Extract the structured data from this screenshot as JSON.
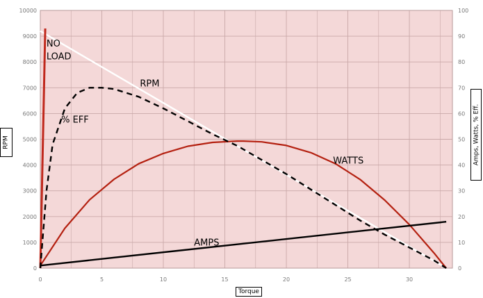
{
  "chart_data": {
    "type": "line",
    "title": "",
    "xlabel": "Torque",
    "ylabel_left": "RPM",
    "ylabel_right": "Amps, Watts, % Eff.",
    "xlim": [
      0,
      33.5
    ],
    "ylim_left": [
      0,
      10000
    ],
    "ylim_right": [
      0,
      100
    ],
    "x_ticks": [
      0,
      5,
      10,
      15,
      20,
      25,
      30
    ],
    "y_left_ticks": [
      0,
      1000,
      2000,
      3000,
      4000,
      5000,
      6000,
      7000,
      8000,
      9000,
      10000
    ],
    "y_right_ticks": [
      0,
      10,
      20,
      30,
      40,
      50,
      60,
      70,
      80,
      90,
      100
    ],
    "grid": true,
    "colors": {
      "plot_background": "#f4d8d8",
      "grid": "#c9a8a8",
      "rpm": "#ffffff",
      "watts": "#b42010",
      "no_load": "#c0281c",
      "amps": "#000000",
      "efficiency": "#000000"
    },
    "annotations": [
      {
        "text": "NO",
        "x": 0.5,
        "y": 8600
      },
      {
        "text": "LOAD",
        "x": 0.5,
        "y": 8100
      },
      {
        "text": "RPM",
        "x": 8.1,
        "y": 7050
      },
      {
        "text": "% EFF",
        "x": 1.7,
        "y": 5650
      },
      {
        "text": "WATTS",
        "x": 23.8,
        "y": 4050
      },
      {
        "text": "AMPS",
        "x": 12.5,
        "y": 880
      }
    ],
    "series": [
      {
        "name": "RPM",
        "axis": "left",
        "style": "solid",
        "x": [
          0,
          33
        ],
        "y": [
          9200,
          0
        ]
      },
      {
        "name": "WATTS",
        "axis": "right",
        "style": "solid",
        "x": [
          0,
          2,
          4,
          6,
          8,
          10,
          12,
          14,
          16,
          16.5,
          18,
          20,
          22,
          24,
          26,
          28,
          30,
          32,
          33
        ],
        "y": [
          1,
          15.5,
          26.5,
          34.5,
          40.5,
          44.5,
          47.3,
          48.8,
          49.3,
          49.3,
          49,
          47.6,
          44.8,
          40.5,
          34.4,
          26.4,
          16.9,
          5.9,
          0
        ]
      },
      {
        "name": "NO LOAD",
        "axis": "left",
        "style": "solid",
        "x": [
          0,
          0.4
        ],
        "y": [
          0,
          9300
        ]
      },
      {
        "name": "AMPS",
        "axis": "right",
        "style": "solid",
        "x": [
          0,
          33
        ],
        "y": [
          1,
          18
        ]
      },
      {
        "name": "% EFF",
        "axis": "right",
        "style": "dashed",
        "x": [
          0,
          0.5,
          1,
          2,
          3,
          4,
          5,
          6,
          8,
          10,
          12,
          14,
          16,
          18,
          20,
          22,
          24,
          26,
          28,
          30,
          32,
          33
        ],
        "y": [
          0,
          30,
          48,
          62,
          68,
          70,
          70,
          69.5,
          66.5,
          62,
          57,
          52,
          47.5,
          42,
          36.5,
          30.5,
          24.5,
          18.5,
          13,
          8,
          3,
          0
        ]
      }
    ]
  }
}
